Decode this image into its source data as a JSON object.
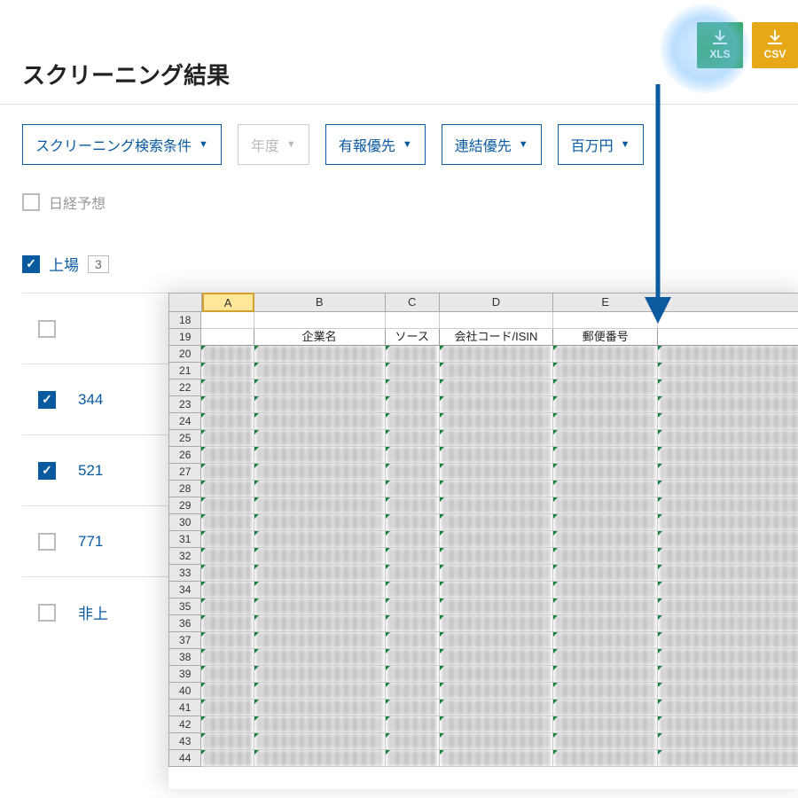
{
  "title": "スクリーニング結果",
  "export": {
    "xls": "XLS",
    "csv": "CSV"
  },
  "filters": {
    "screening": "スクリーニング検索条件",
    "year": "年度",
    "report": "有報優先",
    "consolidated": "連結優先",
    "unit": "百万円"
  },
  "nikkei_forecast": "日経予想",
  "category": {
    "label": "上場",
    "count": "3"
  },
  "result_rows": [
    {
      "checked": false,
      "code": ""
    },
    {
      "checked": true,
      "code": "344"
    },
    {
      "checked": true,
      "code": "521"
    },
    {
      "checked": false,
      "code": "771"
    },
    {
      "checked": false,
      "code": "非上"
    }
  ],
  "excel": {
    "cols": [
      "A",
      "B",
      "C",
      "D",
      "E"
    ],
    "first_row": 18,
    "header_row": 19,
    "headers": {
      "B": "企業名",
      "C": "ソース",
      "D": "会社コード/ISIN",
      "E": "郵便番号"
    },
    "rows": [
      20,
      21,
      22,
      23,
      24,
      25,
      26,
      27,
      28,
      29,
      30,
      31,
      32,
      33,
      34,
      35,
      36,
      37,
      38,
      39,
      40,
      41,
      42,
      43,
      44
    ]
  },
  "colors": {
    "primary": "#0a5aa0",
    "xls": "#33a864",
    "csv": "#e6a817",
    "highlight": "#ffe699"
  }
}
